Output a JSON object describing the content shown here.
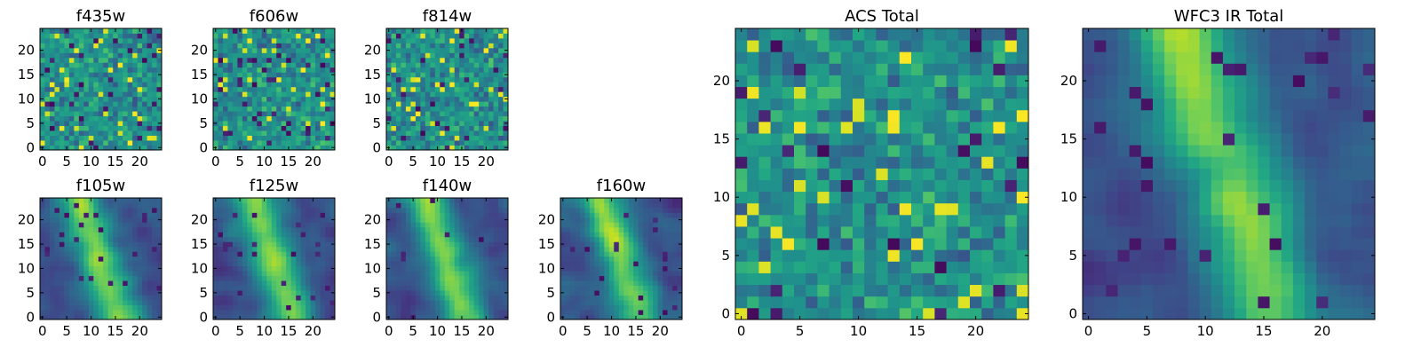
{
  "figure": {
    "colormap": "viridis"
  },
  "chart_data": [
    {
      "type": "heatmap",
      "title": "f435w",
      "grid": [
        25,
        25
      ],
      "xticks": [
        "0",
        "5",
        "10",
        "15",
        "20"
      ],
      "yticks": [
        "0",
        "5",
        "10",
        "15",
        "20"
      ],
      "xlim": [
        -0.5,
        24.5
      ],
      "ylim": [
        -0.5,
        24.5
      ],
      "pattern": "noise",
      "seed": 11
    },
    {
      "type": "heatmap",
      "title": "f606w",
      "grid": [
        25,
        25
      ],
      "xticks": [
        "0",
        "5",
        "10",
        "15",
        "20"
      ],
      "yticks": [
        "0",
        "5",
        "10",
        "15",
        "20"
      ],
      "xlim": [
        -0.5,
        24.5
      ],
      "ylim": [
        -0.5,
        24.5
      ],
      "pattern": "noise",
      "seed": 23
    },
    {
      "type": "heatmap",
      "title": "f814w",
      "grid": [
        25,
        25
      ],
      "xticks": [
        "0",
        "5",
        "10",
        "15",
        "20"
      ],
      "yticks": [
        "0",
        "5",
        "10",
        "15",
        "20"
      ],
      "xlim": [
        -0.5,
        24.5
      ],
      "ylim": [
        -0.5,
        24.5
      ],
      "pattern": "noise",
      "seed": 37
    },
    {
      "type": "heatmap",
      "title": "f105w",
      "grid": [
        25,
        25
      ],
      "xticks": [
        "0",
        "5",
        "10",
        "15",
        "20"
      ],
      "yticks": [
        "0",
        "5",
        "10",
        "15",
        "20"
      ],
      "xlim": [
        -0.5,
        24.5
      ],
      "ylim": [
        -0.5,
        24.5
      ],
      "pattern": "smooth",
      "seed": 41
    },
    {
      "type": "heatmap",
      "title": "f125w",
      "grid": [
        25,
        25
      ],
      "xticks": [
        "0",
        "5",
        "10",
        "15",
        "20"
      ],
      "yticks": [
        "0",
        "5",
        "10",
        "15",
        "20"
      ],
      "xlim": [
        -0.5,
        24.5
      ],
      "ylim": [
        -0.5,
        24.5
      ],
      "pattern": "smooth",
      "seed": 53
    },
    {
      "type": "heatmap",
      "title": "f140w",
      "grid": [
        25,
        25
      ],
      "xticks": [
        "0",
        "5",
        "10",
        "15",
        "20"
      ],
      "yticks": [
        "0",
        "5",
        "10",
        "15",
        "20"
      ],
      "xlim": [
        -0.5,
        24.5
      ],
      "ylim": [
        -0.5,
        24.5
      ],
      "pattern": "smooth",
      "seed": 67
    },
    {
      "type": "heatmap",
      "title": "f160w",
      "grid": [
        25,
        25
      ],
      "xticks": [
        "0",
        "5",
        "10",
        "15",
        "20"
      ],
      "yticks": [
        "0",
        "5",
        "10",
        "15",
        "20"
      ],
      "xlim": [
        -0.5,
        24.5
      ],
      "ylim": [
        -0.5,
        24.5
      ],
      "pattern": "smooth",
      "seed": 79
    },
    {
      "type": "heatmap",
      "title": "ACS Total",
      "grid": [
        25,
        25
      ],
      "xticks": [
        "0",
        "5",
        "10",
        "15",
        "20"
      ],
      "yticks": [
        "0",
        "5",
        "10",
        "15",
        "20"
      ],
      "xlim": [
        -0.5,
        24.5
      ],
      "ylim": [
        -0.5,
        24.5
      ],
      "pattern": "noise",
      "seed": 97
    },
    {
      "type": "heatmap",
      "title": "WFC3 IR Total",
      "grid": [
        25,
        25
      ],
      "xticks": [
        "0",
        "5",
        "10",
        "15",
        "20"
      ],
      "yticks": [
        "0",
        "5",
        "10",
        "15",
        "20"
      ],
      "xlim": [
        -0.5,
        24.5
      ],
      "ylim": [
        -0.5,
        24.5
      ],
      "pattern": "smooth",
      "seed": 101
    }
  ]
}
